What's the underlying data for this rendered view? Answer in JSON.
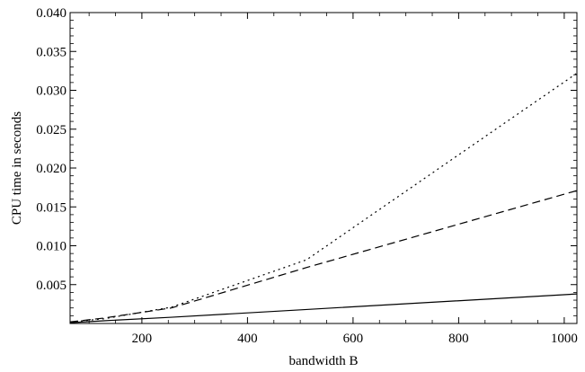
{
  "chart_data": {
    "type": "line",
    "title": "",
    "xlabel": "bandwidth B",
    "ylabel": "CPU time in seconds",
    "xlim": [
      64,
      1024
    ],
    "ylim": [
      0,
      0.04
    ],
    "xticks": [
      200,
      400,
      600,
      800,
      1000
    ],
    "xtick_labels": [
      "200",
      "400",
      "600",
      "800",
      "1000"
    ],
    "yticks": [
      0.005,
      0.01,
      0.015,
      0.02,
      0.025,
      0.03,
      0.035,
      0.04
    ],
    "ytick_labels": [
      "0.005",
      "0.010",
      "0.015",
      "0.020",
      "0.025",
      "0.030",
      "0.035",
      "0.040"
    ],
    "grid": false,
    "legend": "none",
    "series": [
      {
        "style": "solid",
        "color": "#000000",
        "x": [
          64,
          128,
          256,
          512,
          1024
        ],
        "y": [
          0.0001,
          0.00035,
          0.0008,
          0.0018,
          0.0038
        ]
      },
      {
        "style": "dashed",
        "color": "#000000",
        "x": [
          64,
          128,
          256,
          512,
          1024
        ],
        "y": [
          0.0002,
          0.0007,
          0.002,
          0.0072,
          0.0171
        ]
      },
      {
        "style": "dotted",
        "color": "#000000",
        "x": [
          64,
          128,
          256,
          512,
          1024
        ],
        "y": [
          0.0002,
          0.0006,
          0.0021,
          0.0082,
          0.0322
        ]
      }
    ]
  }
}
